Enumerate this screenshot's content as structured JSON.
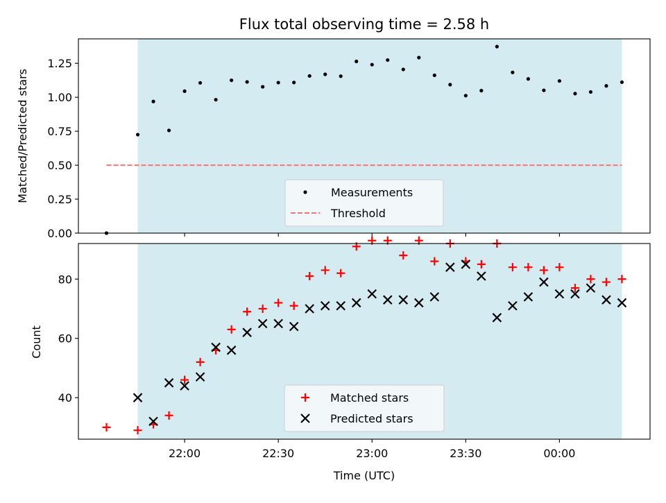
{
  "chart_data": [
    {
      "type": "scatter",
      "title": "Flux total observing time = 2.58 h",
      "xlabel": "",
      "ylabel": "Matched/Predicted stars",
      "x_time": [
        "21:35",
        "21:45",
        "21:50",
        "21:55",
        "22:00",
        "22:05",
        "22:10",
        "22:15",
        "22:20",
        "22:25",
        "22:30",
        "22:35",
        "22:40",
        "22:45",
        "22:50",
        "22:55",
        "23:00",
        "23:05",
        "23:10",
        "23:15",
        "23:20",
        "23:25",
        "23:30",
        "23:35",
        "23:40",
        "23:45",
        "23:50",
        "23:55",
        "00:00",
        "00:05",
        "00:10",
        "00:15",
        "00:20"
      ],
      "series": [
        {
          "name": "Measurements",
          "color": "#000000",
          "marker": "dot",
          "values": [
            0.0,
            0.725,
            0.969,
            0.756,
            1.045,
            1.106,
            0.982,
            1.125,
            1.113,
            1.077,
            1.108,
            1.109,
            1.157,
            1.169,
            1.155,
            1.264,
            1.24,
            1.274,
            1.205,
            1.292,
            1.162,
            1.093,
            1.012,
            1.049,
            1.373,
            1.183,
            1.135,
            1.051,
            1.12,
            1.027,
            1.039,
            1.084,
            1.111
          ]
        },
        {
          "name": "Threshold",
          "color": "#ff7070",
          "style": "dashed",
          "x_range": [
            "21:35",
            "00:20"
          ],
          "value": 0.5
        }
      ],
      "ylim": [
        0.0,
        1.43
      ],
      "yticks": [
        "0.00",
        "0.25",
        "0.50",
        "0.75",
        "1.00",
        "1.25"
      ],
      "shaded_region": {
        "from": "21:45",
        "to": "00:20",
        "color": "#d4ebf1"
      },
      "legend": "bottom-center"
    },
    {
      "type": "scatter",
      "title": "",
      "xlabel": "Time (UTC)",
      "ylabel": "Count",
      "x_time": [
        "21:35",
        "21:45",
        "21:50",
        "21:55",
        "22:00",
        "22:05",
        "22:10",
        "22:15",
        "22:20",
        "22:25",
        "22:30",
        "22:35",
        "22:40",
        "22:45",
        "22:50",
        "22:55",
        "23:00",
        "23:05",
        "23:10",
        "23:15",
        "23:20",
        "23:25",
        "23:30",
        "23:35",
        "23:40",
        "23:45",
        "23:50",
        "23:55",
        "00:00",
        "00:05",
        "00:10",
        "00:15",
        "00:20"
      ],
      "series": [
        {
          "name": "Matched stars",
          "color": "#ff0000",
          "marker": "plus",
          "values": [
            30,
            29,
            31,
            34,
            46,
            52,
            56,
            63,
            69,
            70,
            72,
            71,
            81,
            83,
            82,
            91,
            93,
            93,
            88,
            93,
            86,
            92,
            86,
            85,
            92,
            84,
            84,
            83,
            84,
            77,
            80,
            79,
            80
          ]
        },
        {
          "name": "Predicted stars",
          "color": "#000000",
          "marker": "x",
          "values": [
            null,
            40,
            32,
            45,
            44,
            47,
            57,
            56,
            62,
            65,
            65,
            64,
            70,
            71,
            71,
            72,
            75,
            73,
            73,
            72,
            74,
            84,
            85,
            81,
            67,
            71,
            74,
            79,
            75,
            75,
            77,
            73,
            72
          ]
        }
      ],
      "ylim": [
        26,
        92
      ],
      "yticks": [
        "40",
        "60",
        "80"
      ],
      "xticks": [
        "22:00",
        "22:30",
        "23:00",
        "23:30",
        "00:00"
      ],
      "shaded_region": {
        "from": "21:45",
        "to": "00:20",
        "color": "#d4ebf1"
      },
      "legend": "bottom-center"
    }
  ]
}
